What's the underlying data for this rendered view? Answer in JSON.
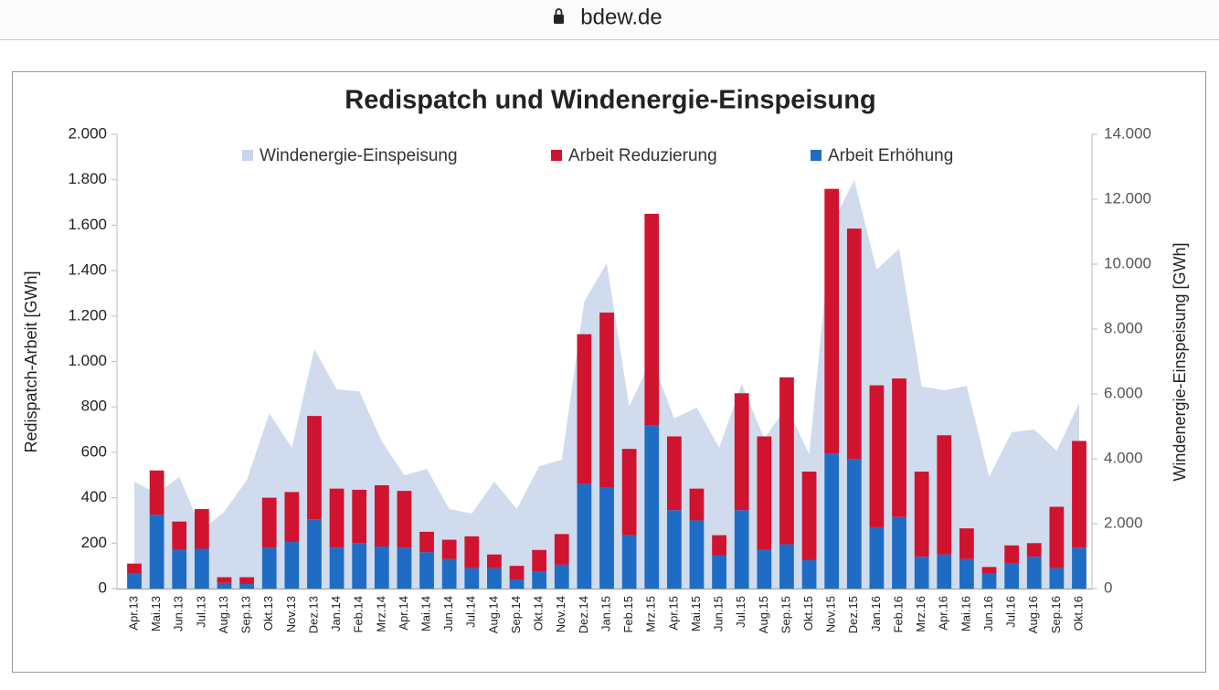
{
  "browser": {
    "url": "bdew.de"
  },
  "chart_data": {
    "type": "bar",
    "stacked": true,
    "legend": "top",
    "title": "Redispatch und Windenergie-Einspeisung",
    "y_label": "Redispatch-Arbeit [GWh]",
    "y2_label": "Windenergie-Einspeisung [GWh]",
    "categories": [
      "Apr.13",
      "Mai.13",
      "Jun.13",
      "Jul.13",
      "Aug.13",
      "Sep.13",
      "Okt.13",
      "Nov.13",
      "Dez.13",
      "Jan.14",
      "Feb.14",
      "Mrz.14",
      "Apr.14",
      "Mai.14",
      "Jun.14",
      "Jul.14",
      "Aug.14",
      "Sep.14",
      "Okt.14",
      "Nov.14",
      "Dez.14",
      "Jan.15",
      "Feb.15",
      "Mrz.15",
      "Apr.15",
      "Mai.15",
      "Jun.15",
      "Jul.15",
      "Aug.15",
      "Sep.15",
      "Okt.15",
      "Nov.15",
      "Dez.15",
      "Jan.16",
      "Feb.16",
      "Mrz.16",
      "Apr.16",
      "Mai.16",
      "Jun.16",
      "Jul.16",
      "Aug.16",
      "Sep.16",
      "Okt.16"
    ],
    "series": [
      {
        "name": "Windenergie-Einspeisung",
        "type": "area",
        "axis": "y2",
        "color": "#c8d6ea",
        "values": [
          3300,
          2930,
          3440,
          1800,
          2370,
          3350,
          5400,
          4340,
          7380,
          6140,
          6080,
          4540,
          3490,
          3690,
          2450,
          2310,
          3300,
          2450,
          3770,
          3970,
          8850,
          10030,
          5610,
          7100,
          5240,
          5580,
          4340,
          6310,
          4620,
          5610,
          4140,
          11210,
          12590,
          9830,
          10480,
          6230,
          6110,
          6250,
          3440,
          4820,
          4900,
          4250,
          5720
        ]
      },
      {
        "name": "Arbeit Reduzierung",
        "type": "bar",
        "color": "#d0132f",
        "values": [
          45,
          195,
          125,
          175,
          25,
          30,
          220,
          220,
          455,
          260,
          235,
          270,
          250,
          90,
          85,
          140,
          60,
          60,
          95,
          135,
          660,
          770,
          380,
          930,
          325,
          140,
          90,
          515,
          500,
          735,
          390,
          1165,
          1015,
          625,
          610,
          375,
          525,
          135,
          30,
          80,
          60,
          270,
          470
        ]
      },
      {
        "name": "Arbeit Erhöhung",
        "type": "bar",
        "color": "#1f6cc4",
        "values": [
          65,
          325,
          170,
          175,
          25,
          20,
          180,
          205,
          305,
          180,
          200,
          185,
          180,
          160,
          130,
          90,
          90,
          40,
          75,
          105,
          460,
          445,
          235,
          720,
          345,
          300,
          145,
          345,
          170,
          195,
          125,
          595,
          570,
          270,
          315,
          140,
          150,
          130,
          65,
          110,
          140,
          90,
          180
        ]
      }
    ],
    "ylim": [
      0,
      2000
    ],
    "yticks": [
      0,
      200,
      400,
      600,
      800,
      {
        "value": 1000,
        "label": "1.000"
      },
      {
        "value": 1200,
        "label": "1.200"
      },
      {
        "value": 1400,
        "label": "1.400"
      },
      {
        "value": 1600,
        "label": "1.600"
      },
      {
        "value": 1800,
        "label": "1.800"
      },
      {
        "value": 2000,
        "label": "2.000"
      }
    ],
    "y2lim": [
      0,
      14000
    ],
    "y2ticks": [
      0,
      {
        "value": 2000,
        "label": "2.000"
      },
      {
        "value": 4000,
        "label": "4.000"
      },
      {
        "value": 6000,
        "label": "6.000"
      },
      {
        "value": 8000,
        "label": "8.000"
      },
      {
        "value": 10000,
        "label": "10.000"
      },
      {
        "value": 12000,
        "label": "12.000"
      },
      {
        "value": 14000,
        "label": "14.000"
      }
    ]
  }
}
